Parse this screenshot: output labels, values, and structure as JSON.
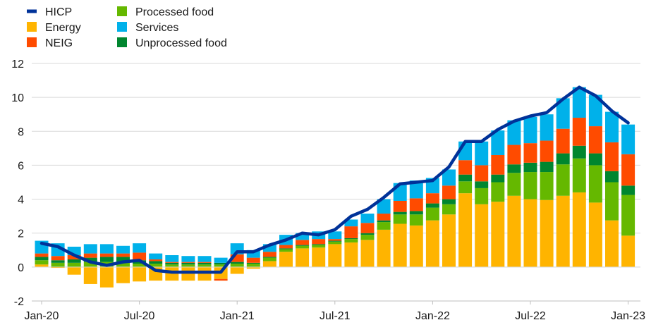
{
  "chart_data": {
    "type": "bar",
    "subtype": "stacked-bar-with-line",
    "title": "",
    "xlabel": "",
    "ylabel": "",
    "ylim": [
      -2,
      12
    ],
    "yticks": [
      -2,
      0,
      2,
      4,
      6,
      8,
      10,
      12
    ],
    "grid": true,
    "legend_position": "top-left",
    "x_tick_labels": [
      {
        "index": 0,
        "label": "Jan-20"
      },
      {
        "index": 6,
        "label": "Jul-20"
      },
      {
        "index": 12,
        "label": "Jan-21"
      },
      {
        "index": 18,
        "label": "Jul-21"
      },
      {
        "index": 24,
        "label": "Jan-22"
      },
      {
        "index": 30,
        "label": "Jul-22"
      },
      {
        "index": 36,
        "label": "Jan-23"
      }
    ],
    "categories": [
      "Jan-20",
      "Feb-20",
      "Mar-20",
      "Apr-20",
      "May-20",
      "Jun-20",
      "Jul-20",
      "Aug-20",
      "Sep-20",
      "Oct-20",
      "Nov-20",
      "Dec-20",
      "Jan-21",
      "Feb-21",
      "Mar-21",
      "Apr-21",
      "May-21",
      "Jun-21",
      "Jul-21",
      "Aug-21",
      "Sep-21",
      "Oct-21",
      "Nov-21",
      "Dec-21",
      "Jan-22",
      "Feb-22",
      "Mar-22",
      "Apr-22",
      "May-22",
      "Jun-22",
      "Jul-22",
      "Aug-22",
      "Sep-22",
      "Oct-22",
      "Nov-22",
      "Dec-22",
      "Jan-23"
    ],
    "series": [
      {
        "name": "Energy",
        "color": "#FFB400",
        "values": [
          0.15,
          -0.05,
          -0.45,
          -1.0,
          -1.2,
          -0.95,
          -0.85,
          -0.8,
          -0.8,
          -0.8,
          -0.8,
          -0.7,
          -0.4,
          -0.1,
          0.35,
          0.9,
          1.1,
          1.15,
          1.35,
          1.45,
          1.6,
          2.2,
          2.55,
          2.45,
          2.75,
          3.1,
          4.35,
          3.7,
          3.85,
          4.2,
          4.0,
          3.95,
          4.2,
          4.4,
          3.8,
          2.75,
          1.85
        ]
      },
      {
        "name": "Processed food",
        "color": "#65B800",
        "values": [
          0.25,
          0.25,
          0.25,
          0.3,
          0.3,
          0.3,
          0.2,
          0.2,
          0.15,
          0.15,
          0.15,
          0.15,
          0.2,
          0.2,
          0.2,
          0.15,
          0.15,
          0.15,
          0.15,
          0.2,
          0.3,
          0.45,
          0.55,
          0.65,
          0.75,
          0.6,
          0.7,
          0.95,
          1.15,
          1.35,
          1.6,
          1.65,
          1.85,
          2.0,
          2.2,
          2.25,
          2.4
        ]
      },
      {
        "name": "Unprocessed food",
        "color": "#00862F",
        "values": [
          0.2,
          0.15,
          0.2,
          0.25,
          0.3,
          0.3,
          0.2,
          0.15,
          0.1,
          0.1,
          0.1,
          0.1,
          0.1,
          0.05,
          0.05,
          0.05,
          0.05,
          0.05,
          0.05,
          0.05,
          0.1,
          0.1,
          0.15,
          0.2,
          0.25,
          0.3,
          0.4,
          0.4,
          0.45,
          0.5,
          0.55,
          0.6,
          0.65,
          0.75,
          0.7,
          0.65,
          0.55
        ]
      },
      {
        "name": "NEIG",
        "color": "#FF4B00",
        "values": [
          0.2,
          0.25,
          0.25,
          0.25,
          0.2,
          0.2,
          0.45,
          0.1,
          0.05,
          0.05,
          0.05,
          -0.1,
          0.45,
          0.3,
          0.3,
          0.2,
          0.3,
          0.3,
          0.1,
          0.7,
          0.6,
          0.4,
          0.65,
          0.75,
          0.6,
          0.8,
          0.85,
          0.95,
          1.15,
          1.15,
          1.15,
          1.25,
          1.45,
          1.65,
          1.6,
          1.7,
          1.85
        ]
      },
      {
        "name": "Services",
        "color": "#00B1EA",
        "values": [
          0.75,
          0.75,
          0.5,
          0.55,
          0.55,
          0.45,
          0.55,
          0.35,
          0.4,
          0.35,
          0.35,
          0.3,
          0.65,
          0.45,
          0.45,
          0.6,
          0.4,
          0.45,
          0.45,
          0.4,
          0.55,
          0.85,
          1.05,
          1.05,
          0.9,
          0.95,
          1.1,
          1.4,
          1.45,
          1.45,
          1.55,
          1.55,
          1.8,
          1.8,
          1.85,
          1.8,
          1.75
        ]
      }
    ],
    "line": {
      "name": "HICP",
      "color": "#003299",
      "values": [
        1.4,
        1.2,
        0.7,
        0.3,
        0.1,
        0.3,
        0.4,
        -0.2,
        -0.3,
        -0.3,
        -0.3,
        -0.3,
        0.9,
        0.9,
        1.3,
        1.6,
        2.0,
        1.9,
        2.2,
        3.0,
        3.4,
        4.1,
        4.9,
        5.0,
        5.1,
        5.9,
        7.4,
        7.4,
        8.1,
        8.6,
        8.9,
        9.1,
        9.9,
        10.6,
        10.1,
        9.2,
        8.5
      ]
    },
    "legend": {
      "columns": [
        [
          "HICP",
          "Energy",
          "NEIG"
        ],
        [
          "Processed food",
          "Services",
          "Unprocessed food"
        ]
      ]
    }
  }
}
